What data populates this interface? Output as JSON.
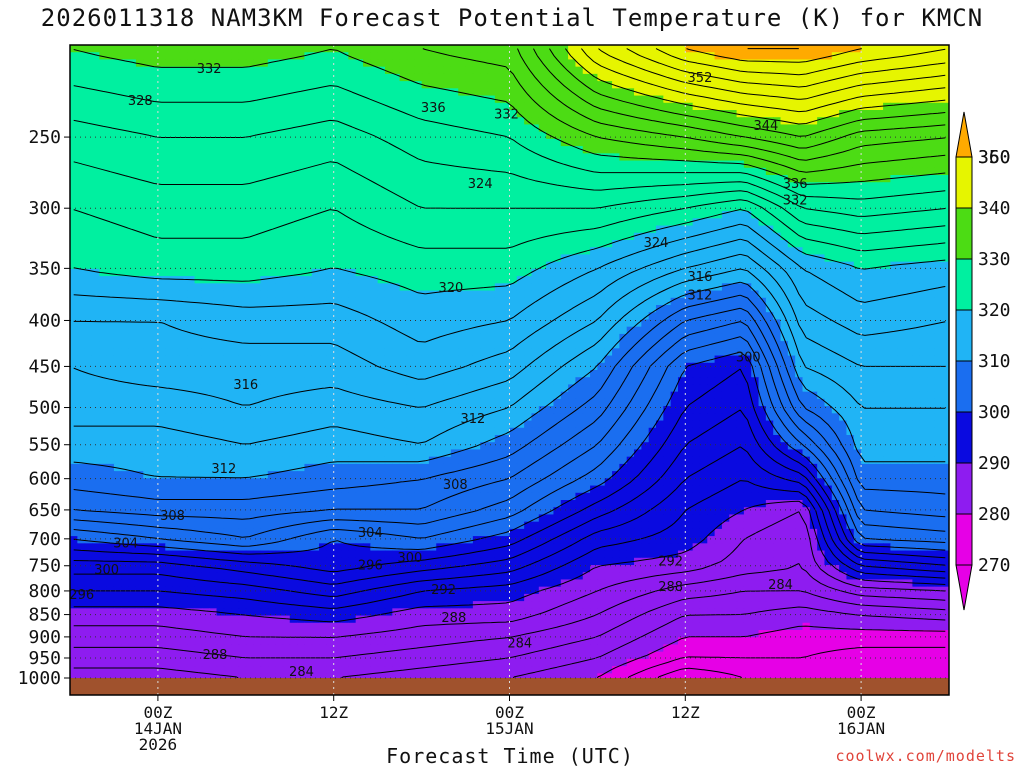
{
  "title": "2026011318 NAM3KM Forecast Potential Temperature (K) for KMCN",
  "credit": "coolwx.com/modelts",
  "colors": {
    "ground": "#a0522d",
    "bands": [
      {
        "min": 270,
        "max": 280,
        "color": "#e600e6"
      },
      {
        "min": 280,
        "max": 290,
        "color": "#8e1cf0"
      },
      {
        "min": 290,
        "max": 300,
        "color": "#0a0ae0"
      },
      {
        "min": 300,
        "max": 310,
        "color": "#1a6ef0"
      },
      {
        "min": 310,
        "max": 320,
        "color": "#20b4f5"
      },
      {
        "min": 320,
        "max": 330,
        "color": "#00f0a0"
      },
      {
        "min": 330,
        "max": 340,
        "color": "#4cdc14"
      },
      {
        "min": 340,
        "max": 350,
        "color": "#e6f500"
      },
      {
        "min": 350,
        "max": 360,
        "color": "#ffaa00"
      }
    ]
  },
  "chart_data": {
    "type": "heatmap",
    "title": "2026011318 NAM3KM Forecast Potential Temperature (K) for KMCN",
    "xlabel": "Forecast Time (UTC)",
    "ylabel": "",
    "x_ticks": [
      {
        "hour": 6,
        "lines": [
          "00Z",
          "14JAN",
          "2026"
        ]
      },
      {
        "hour": 18,
        "lines": [
          "12Z"
        ]
      },
      {
        "hour": 30,
        "lines": [
          "00Z",
          "15JAN"
        ]
      },
      {
        "hour": 42,
        "lines": [
          "12Z"
        ]
      },
      {
        "hour": 54,
        "lines": [
          "00Z",
          "16JAN"
        ]
      }
    ],
    "xlim_hours": [
      0,
      60
    ],
    "y_ticks": [
      1000,
      950,
      900,
      850,
      800,
      750,
      700,
      650,
      600,
      550,
      500,
      450,
      400,
      350,
      300,
      250
    ],
    "ylim_hpa": [
      1000,
      200
    ],
    "colorbar": {
      "ticks": [
        270,
        280,
        290,
        300,
        310,
        320,
        330,
        340,
        350,
        360
      ],
      "extend": "both"
    },
    "contour_interval_K": 2,
    "grid": true,
    "columns": [
      {
        "hour": 0,
        "theta": {
          "1000": 283,
          "950": 285,
          "900": 287,
          "850": 289,
          "800": 292,
          "750": 295,
          "700": 300,
          "650": 306,
          "600": 309,
          "550": 311,
          "500": 313,
          "450": 314,
          "400": 316,
          "350": 320,
          "300": 322,
          "250": 325,
          "200": 330
        }
      },
      {
        "hour": 6,
        "theta": {
          "1000": 283,
          "950": 285,
          "900": 287,
          "850": 289,
          "800": 292,
          "750": 295,
          "700": 302,
          "650": 307,
          "600": 310,
          "550": 311,
          "500": 313,
          "450": 315,
          "400": 316,
          "350": 321,
          "300": 323,
          "250": 326,
          "200": 331
        }
      },
      {
        "hour": 12,
        "theta": {
          "1000": 284,
          "950": 286,
          "900": 288,
          "850": 290,
          "800": 293,
          "750": 297,
          "700": 304,
          "650": 307,
          "600": 310,
          "550": 312,
          "500": 314,
          "450": 315,
          "400": 317,
          "350": 321,
          "300": 323,
          "250": 326,
          "200": 331
        }
      },
      {
        "hour": 18,
        "theta": {
          "1000": 284,
          "950": 286,
          "900": 288,
          "850": 291,
          "800": 295,
          "750": 299,
          "700": 300,
          "650": 306,
          "600": 309,
          "550": 311,
          "500": 313,
          "450": 315,
          "400": 317,
          "350": 320,
          "300": 322,
          "250": 325,
          "200": 330
        }
      },
      {
        "hour": 24,
        "theta": {
          "1000": 283,
          "950": 285,
          "900": 287,
          "850": 289,
          "800": 292,
          "750": 297,
          "700": 302,
          "650": 306,
          "600": 308,
          "550": 312,
          "500": 314,
          "450": 317,
          "400": 319,
          "350": 321,
          "300": 324,
          "250": 327,
          "200": 332
        }
      },
      {
        "hour": 30,
        "theta": {
          "1000": 282,
          "950": 284,
          "900": 286,
          "850": 289,
          "800": 291,
          "750": 295,
          "700": 299,
          "650": 303,
          "600": 306,
          "550": 309,
          "500": 312,
          "450": 315,
          "400": 318,
          "350": 321,
          "300": 324,
          "250": 328,
          "200": 333
        }
      },
      {
        "hour": 36,
        "theta": {
          "1000": 280,
          "950": 282,
          "900": 284,
          "850": 286,
          "800": 288,
          "750": 290,
          "700": 293,
          "650": 297,
          "600": 301,
          "550": 304,
          "500": 307,
          "450": 310,
          "400": 314,
          "350": 318,
          "300": 324,
          "250": 332,
          "200": 344
        }
      },
      {
        "hour": 42,
        "theta": {
          "1000": 274,
          "950": 278,
          "900": 280,
          "850": 282,
          "800": 285,
          "750": 289,
          "700": 291,
          "650": 292,
          "600": 294,
          "550": 296,
          "500": 298,
          "450": 300,
          "400": 306,
          "350": 314,
          "300": 322,
          "250": 334,
          "200": 350
        }
      },
      {
        "hour": 46,
        "theta": {
          "1000": 276,
          "950": 278,
          "900": 280,
          "850": 282,
          "800": 284,
          "750": 287,
          "700": 288,
          "650": 290,
          "600": 292,
          "550": 294,
          "500": 296,
          "450": 298,
          "400": 304,
          "350": 312,
          "300": 320,
          "250": 336,
          "200": 352
        }
      },
      {
        "hour": 50,
        "theta": {
          "1000": 277,
          "950": 278,
          "900": 279,
          "850": 281,
          "800": 284,
          "750": 286,
          "700": 286,
          "650": 288,
          "600": 295,
          "550": 302,
          "500": 308,
          "450": 312,
          "400": 315,
          "350": 318,
          "300": 326,
          "250": 338,
          "200": 352
        }
      },
      {
        "hour": 54,
        "theta": {
          "1000": 276,
          "950": 277,
          "900": 279,
          "850": 282,
          "800": 287,
          "750": 294,
          "700": 302,
          "650": 306,
          "600": 309,
          "550": 311,
          "500": 312,
          "450": 314,
          "400": 317,
          "350": 320,
          "300": 327,
          "250": 335,
          "200": 350
        }
      },
      {
        "hour": 60,
        "theta": {
          "1000": 276,
          "950": 277,
          "900": 279,
          "850": 283,
          "800": 288,
          "750": 296,
          "700": 303,
          "650": 307,
          "600": 309,
          "550": 311,
          "500": 312,
          "450": 314,
          "400": 316,
          "350": 319,
          "300": 326,
          "250": 334,
          "200": 348
        }
      }
    ],
    "contour_labels": [
      {
        "text": "332",
        "hour": 9.5,
        "p": 210
      },
      {
        "text": "328",
        "hour": 4.8,
        "p": 228
      },
      {
        "text": "336",
        "hour": 24.8,
        "p": 232
      },
      {
        "text": "332",
        "hour": 29.8,
        "p": 236
      },
      {
        "text": "352",
        "hour": 43,
        "p": 215
      },
      {
        "text": "344",
        "hour": 47.5,
        "p": 243
      },
      {
        "text": "324",
        "hour": 28,
        "p": 282
      },
      {
        "text": "336",
        "hour": 49.5,
        "p": 282
      },
      {
        "text": "332",
        "hour": 49.5,
        "p": 294
      },
      {
        "text": "324",
        "hour": 40,
        "p": 328
      },
      {
        "text": "316",
        "hour": 43,
        "p": 358
      },
      {
        "text": "312",
        "hour": 43,
        "p": 375
      },
      {
        "text": "320",
        "hour": 26,
        "p": 368
      },
      {
        "text": "300",
        "hour": 46.3,
        "p": 440
      },
      {
        "text": "316",
        "hour": 12,
        "p": 472
      },
      {
        "text": "312",
        "hour": 27.5,
        "p": 515
      },
      {
        "text": "312",
        "hour": 10.5,
        "p": 585
      },
      {
        "text": "308",
        "hour": 26.3,
        "p": 610
      },
      {
        "text": "308",
        "hour": 7,
        "p": 660
      },
      {
        "text": "304",
        "hour": 3.8,
        "p": 708
      },
      {
        "text": "304",
        "hour": 20.5,
        "p": 690
      },
      {
        "text": "300",
        "hour": 2.5,
        "p": 758
      },
      {
        "text": "300",
        "hour": 23.2,
        "p": 735
      },
      {
        "text": "296",
        "hour": 20.5,
        "p": 750
      },
      {
        "text": "296",
        "hour": 0.8,
        "p": 808
      },
      {
        "text": "292",
        "hour": 41,
        "p": 742
      },
      {
        "text": "292",
        "hour": 25.5,
        "p": 798
      },
      {
        "text": "288",
        "hour": 41,
        "p": 792
      },
      {
        "text": "288",
        "hour": 26.2,
        "p": 857
      },
      {
        "text": "284",
        "hour": 48.5,
        "p": 788
      },
      {
        "text": "284",
        "hour": 30.7,
        "p": 915
      },
      {
        "text": "288",
        "hour": 9.9,
        "p": 943
      },
      {
        "text": "284",
        "hour": 15.8,
        "p": 985
      }
    ]
  }
}
